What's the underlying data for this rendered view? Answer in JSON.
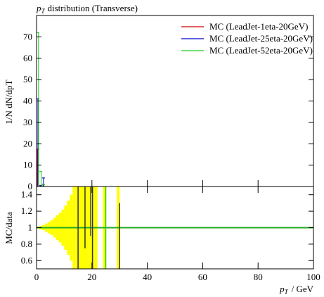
{
  "chart_data": {
    "type": "histogram",
    "title": {
      "var": "p",
      "sub": "T",
      "text": "distribution (Transverse)"
    },
    "ylabel": "1/N dN/dpT",
    "xlabel": {
      "var": "p",
      "sub": "T",
      "text": "/ GeV"
    },
    "xlim": [
      0,
      100
    ],
    "xticks": [
      0,
      20,
      40,
      60,
      80,
      100
    ],
    "ylim": [
      0,
      80
    ],
    "yticks": [
      0,
      10,
      20,
      30,
      40,
      50,
      60,
      70
    ],
    "bins": [
      0,
      1,
      2,
      3
    ],
    "legend": "upper right",
    "series": [
      {
        "name": "MC (LeadJet-1eta-20GeV)",
        "color": "#cc0000",
        "values": [
          17.5,
          0.5,
          1
        ]
      },
      {
        "name": "MC (LeadJet-25eta-20GeV)",
        "color": "#0000cc",
        "values": [
          41,
          0.5,
          4
        ]
      },
      {
        "name": "MC (LeadJet-52eta-20GeV)",
        "color": "#22cc22",
        "values": [
          72,
          7,
          1
        ]
      }
    ],
    "ratio": {
      "ylabel": "MC/data",
      "ylim": [
        0.5,
        1.5
      ],
      "yticks": [
        0.6,
        0.8,
        1,
        1.2,
        1.4
      ],
      "line_value": 1,
      "line_color": "#22aa22",
      "band_color": "#ffff00",
      "band_bins": [
        0,
        1,
        2,
        3,
        4,
        5,
        6,
        7,
        8,
        9,
        10,
        11,
        12,
        13,
        14,
        15,
        16,
        17,
        18,
        19,
        20,
        21,
        22,
        23,
        24,
        25,
        26,
        27,
        28,
        29,
        30,
        31
      ],
      "band": [
        0.01,
        0.02,
        0.03,
        0.05,
        0.07,
        0.09,
        0.12,
        0.15,
        0.18,
        0.22,
        0.27,
        0.33,
        0.4,
        0.5,
        0.6,
        0.6,
        0.6,
        0.6,
        0.6,
        0.6,
        0.6,
        0.6,
        null,
        null,
        0.6,
        null,
        null,
        null,
        null,
        0.6,
        null
      ],
      "spike_x": [
        15,
        17.5,
        19.5,
        20.2,
        25,
        30
      ],
      "spike_low": [
        0.5,
        0.75,
        0.9,
        0.5,
        0.5,
        0.5
      ],
      "spike_high": [
        1.5,
        1.5,
        1.5,
        1.5,
        1.5,
        1.3
      ],
      "spike_colors": [
        "#333333",
        "#333333",
        "#555555",
        "#333333",
        "#22cc22",
        "#333333"
      ]
    }
  }
}
